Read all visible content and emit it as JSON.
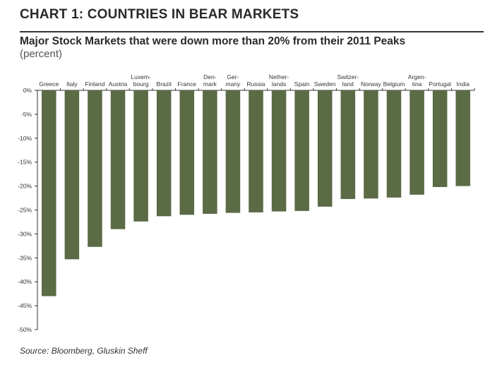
{
  "header": {
    "title": "CHART 1: COUNTRIES IN BEAR MARKETS",
    "subtitle": "Major Stock Markets that were down more than 20% from their 2011 Peaks",
    "unit": "(percent)"
  },
  "footer": {
    "source": "Source: Bloomberg, Gluskin Sheff"
  },
  "chart_data": {
    "type": "bar",
    "title": "Major Stock Markets that were down more than 20% from their 2011 Peaks",
    "ylabel": "(percent)",
    "ylim": [
      -50,
      0
    ],
    "yticks": [
      0,
      -5,
      -10,
      -15,
      -20,
      -25,
      -30,
      -35,
      -40,
      -45,
      -50
    ],
    "ytick_labels": [
      "0%",
      "-5%",
      "-10%",
      "-15%",
      "-20%",
      "-25%",
      "-30%",
      "-35%",
      "-40%",
      "-45%",
      "-50%"
    ],
    "categories": [
      [
        "Greece"
      ],
      [
        "Italy"
      ],
      [
        "Finland"
      ],
      [
        "Austria"
      ],
      [
        "Luxem-",
        "bourg"
      ],
      [
        "Brazil"
      ],
      [
        "France"
      ],
      [
        "Den-",
        "mark"
      ],
      [
        "Ger-",
        "many"
      ],
      [
        "Russia"
      ],
      [
        "Nether-",
        "lands"
      ],
      [
        "Spain"
      ],
      [
        "Sweden"
      ],
      [
        "Switzer-",
        "land"
      ],
      [
        "Norway"
      ],
      [
        "Belgium"
      ],
      [
        "Argen-",
        "tina"
      ],
      [
        "Portugal"
      ],
      [
        "India"
      ]
    ],
    "values": [
      -43.0,
      -35.3,
      -32.7,
      -29.0,
      -27.4,
      -26.3,
      -26.0,
      -25.8,
      -25.6,
      -25.5,
      -25.3,
      -25.2,
      -24.3,
      -22.7,
      -22.6,
      -22.4,
      -21.8,
      -20.2,
      -20.0
    ],
    "colors": {
      "bar": "#5a6b45",
      "axis": "#333333"
    },
    "grid": false
  }
}
